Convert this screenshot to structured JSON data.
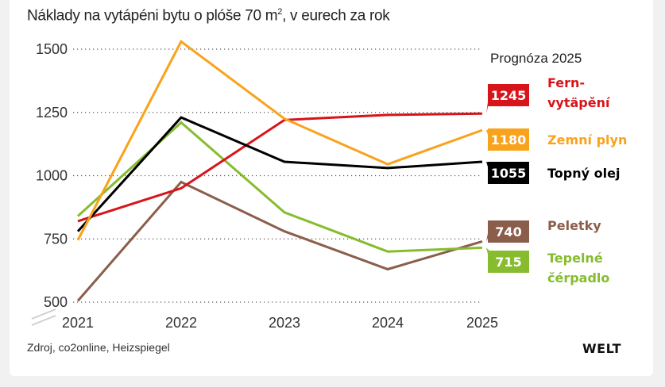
{
  "chart_data": {
    "type": "line",
    "title": "Náklady na vytápéni bytu o plóše 70 m",
    "title_superscript": "2",
    "title_suffix": ", v eurech za rok",
    "x": [
      "2021",
      "2022",
      "2023",
      "2024",
      "2025"
    ],
    "yticks": [
      500,
      750,
      1000,
      1250,
      1500
    ],
    "ylim": [
      500,
      1500
    ],
    "grid": true,
    "forecast_label": "Prognóza 2025",
    "series": [
      {
        "name": "Fern-vytäpění",
        "label_lines": [
          "Fern-",
          "vytäpění"
        ],
        "color": "#d7141a",
        "values": [
          820,
          950,
          1220,
          1240,
          1245
        ],
        "end_label": "1245"
      },
      {
        "name": "Zemní plyn",
        "label_lines": [
          "Zemní plyn"
        ],
        "color": "#f9a21b",
        "values": [
          745,
          1530,
          1225,
          1045,
          1180
        ],
        "end_label": "1180"
      },
      {
        "name": "Topný olej",
        "label_lines": [
          "Topný olej"
        ],
        "color": "#000000",
        "values": [
          780,
          1230,
          1055,
          1030,
          1055
        ],
        "end_label": "1055"
      },
      {
        "name": "Peletky",
        "label_lines": [
          "Peletky"
        ],
        "color": "#8b5e4b",
        "values": [
          505,
          975,
          780,
          630,
          740
        ],
        "end_label": "740"
      },
      {
        "name": "Tepelné čérpadlo",
        "label_lines": [
          "Tepelné",
          "čérpadlo"
        ],
        "color": "#86bc2e",
        "values": [
          840,
          1210,
          855,
          700,
          715
        ],
        "end_label": "715"
      }
    ],
    "source": "Zdroj, co2online, Heizspiegel",
    "brand": "WELT"
  }
}
